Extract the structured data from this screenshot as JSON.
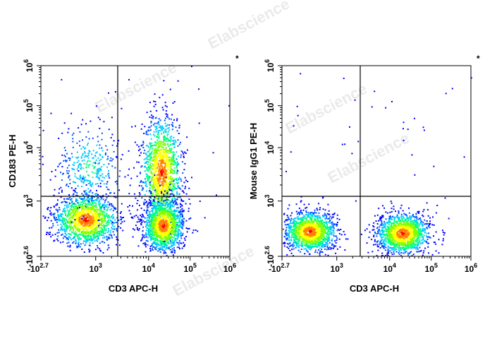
{
  "watermark": "Elabscience",
  "chart_data": [
    {
      "type": "scatter",
      "subtype": "flow-cytometry-density-dot-plot",
      "xlabel": "CD3 APC-H",
      "ylabel": "CD183 PE-H",
      "x_scale": "biexponential",
      "y_scale": "biexponential",
      "xlim": [
        "-10^2.7",
        "10^6"
      ],
      "ylim": [
        "-10^2.6",
        "10^6"
      ],
      "x_ticks": [
        "-10^2.7",
        "10^3",
        "10^4",
        "10^5",
        "10^6"
      ],
      "y_ticks": [
        "-10^2.6",
        "10^3",
        "10^4",
        "10^5",
        "10^6"
      ],
      "quadrant_gate": {
        "x": 2800,
        "y": 1200
      },
      "marker": "*",
      "populations": [
        {
          "region": "CD3- CD183-",
          "x_center": 600,
          "y_center": 400,
          "density": "high"
        },
        {
          "region": "CD3- CD183+",
          "x_center": 700,
          "y_center": 4000,
          "density": "low"
        },
        {
          "region": "CD3+ CD183+",
          "x_center": 20000,
          "y_center": 3500,
          "density": "high"
        },
        {
          "region": "CD3+ CD183-",
          "x_center": 22000,
          "y_center": 300,
          "density": "high"
        }
      ],
      "colormap": [
        "#0000ff",
        "#00c8ff",
        "#00ff80",
        "#ffff00",
        "#ff0000"
      ],
      "grid": false
    },
    {
      "type": "scatter",
      "subtype": "flow-cytometry-density-dot-plot",
      "xlabel": "CD3 APC-H",
      "ylabel": "Mouse IgG1 PE-H",
      "x_scale": "biexponential",
      "y_scale": "biexponential",
      "xlim": [
        "-10^2.7",
        "10^6"
      ],
      "ylim": [
        "-10^2.6",
        "10^6"
      ],
      "x_ticks": [
        "-10^2.7",
        "10^3",
        "10^4",
        "10^5",
        "10^6"
      ],
      "y_ticks": [
        "-10^2.6",
        "10^3",
        "10^4",
        "10^5",
        "10^6"
      ],
      "quadrant_gate": {
        "x": 2800,
        "y": 1200
      },
      "marker": "*",
      "populations": [
        {
          "region": "CD3- IgG1-",
          "x_center": 250,
          "y_center": 220,
          "density": "high"
        },
        {
          "region": "CD3+ IgG1-",
          "x_center": 20000,
          "y_center": 200,
          "density": "high"
        }
      ],
      "colormap": [
        "#0000ff",
        "#00c8ff",
        "#00ff80",
        "#ffff00",
        "#ff0000"
      ],
      "grid": false
    }
  ]
}
